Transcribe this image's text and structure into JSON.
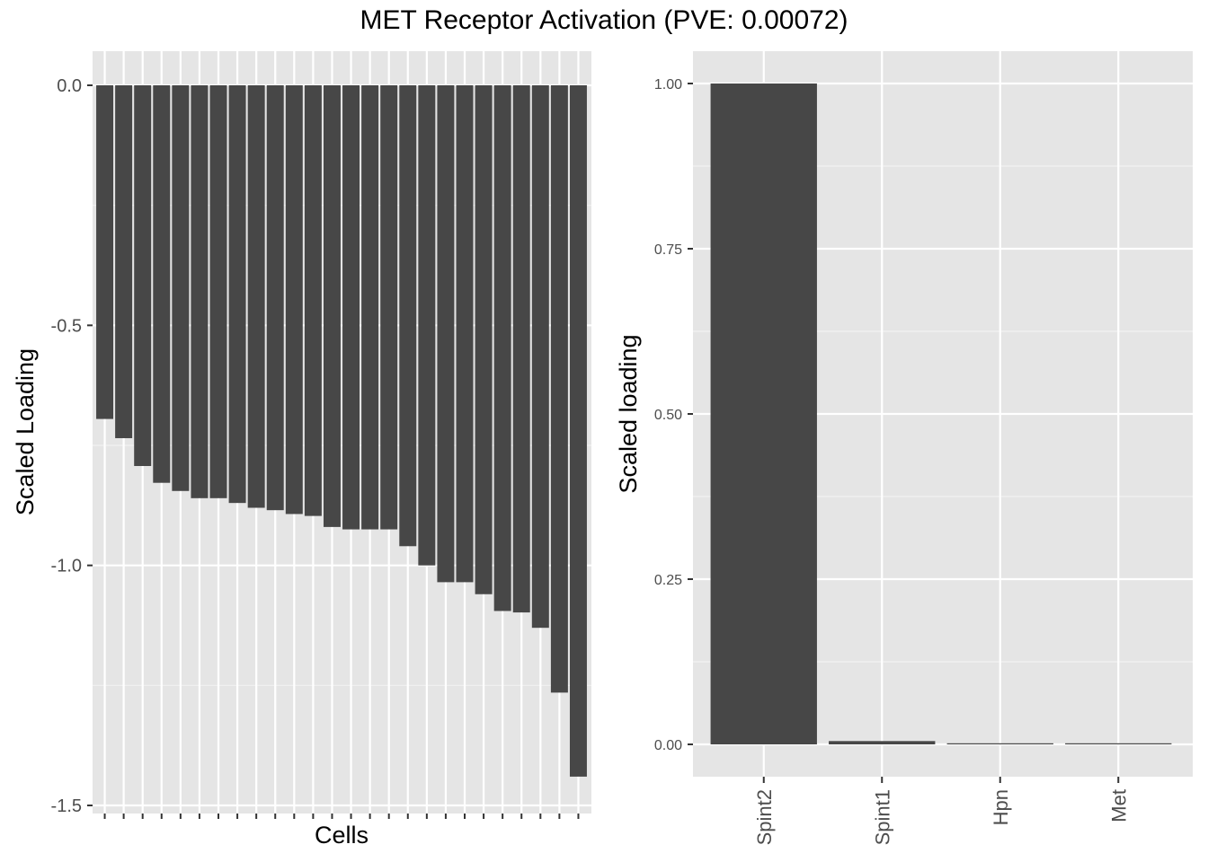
{
  "title": "MET Receptor Activation (PVE: 0.00072)",
  "chart_data": [
    {
      "type": "bar",
      "xlabel": "Cells",
      "ylabel": "Scaled Loading",
      "ylim": [
        -1.5,
        0.0
      ],
      "y_ticks": [
        "0.0",
        "-0.5",
        "-1.0",
        "-1.5"
      ],
      "y_tick_values": [
        0.0,
        -0.5,
        -1.0,
        -1.5
      ],
      "x_tick_labels": "none",
      "grid": true,
      "values": [
        -0.695,
        -0.735,
        -0.793,
        -0.828,
        -0.845,
        -0.86,
        -0.86,
        -0.87,
        -0.88,
        -0.885,
        -0.893,
        -0.897,
        -0.92,
        -0.925,
        -0.925,
        -0.925,
        -0.96,
        -1.0,
        -1.035,
        -1.035,
        -1.06,
        -1.095,
        -1.098,
        -1.13,
        -1.265,
        -1.44
      ],
      "bar_color": "#474747",
      "panel_background": "#e5e5e5"
    },
    {
      "type": "bar",
      "xlabel": "",
      "ylabel": "Scaled loading",
      "categories": [
        "Spint2",
        "Spint1",
        "Hpn",
        "Met"
      ],
      "values": [
        1.0,
        0.005,
        0.001,
        0.0005
      ],
      "ylim": [
        0.0,
        1.0
      ],
      "y_ticks": [
        "0.00",
        "0.25",
        "0.50",
        "0.75",
        "1.00"
      ],
      "y_tick_values": [
        0.0,
        0.25,
        0.5,
        0.75,
        1.0
      ],
      "grid": true,
      "bar_color": "#474747",
      "panel_background": "#e5e5e5"
    }
  ]
}
